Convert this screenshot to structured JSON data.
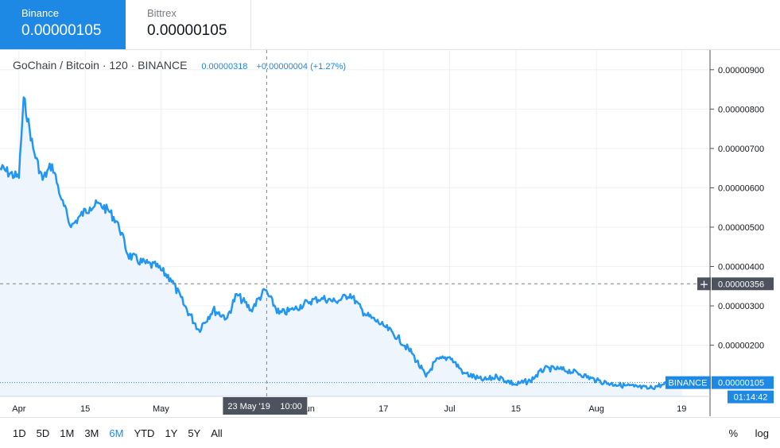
{
  "tabs": [
    {
      "name": "Binance",
      "price": "0.00000105",
      "active": true
    },
    {
      "name": "Bittrex",
      "price": "0.00000105",
      "active": false
    }
  ],
  "legend": {
    "title": "GoChain / Bitcoin · 120 · BINANCE",
    "last": "0.00000318",
    "change": "+0.00000004 (+1.27%)"
  },
  "crosshair": {
    "price_label": "0.00000356",
    "date_label": "23 May '19",
    "time_label": "10:00"
  },
  "last_price": {
    "exchange_label": "BINANCE",
    "value_label": "0.00000105",
    "countdown": "01:14:42"
  },
  "toolbar": {
    "ranges": [
      "1D",
      "5D",
      "1M",
      "3M",
      "6M",
      "YTD",
      "1Y",
      "5Y",
      "All"
    ],
    "selected": "6M",
    "percent": "%",
    "log": "log"
  },
  "colors": {
    "accent": "#1e88e5",
    "line": "#2196f3",
    "area": "#eef5fd",
    "grid": "#eef0f3",
    "crosshair_label_bg": "#4c525e"
  },
  "chart_data": {
    "type": "area",
    "title": "GoChain / Bitcoin · 120 · BINANCE",
    "xlabel": "",
    "ylabel": "",
    "x_ticks": [
      "Apr",
      "15",
      "May",
      "Jun",
      "17",
      "Jul",
      "15",
      "Aug",
      "19"
    ],
    "y_ticks": [
      "0.00000200",
      "0.00000300",
      "0.00000400",
      "0.00000500",
      "0.00000600",
      "0.00000700",
      "0.00000800",
      "0.00000900"
    ],
    "ylim": [
      7e-07,
      9.5e-06
    ],
    "x": [
      "2019-03-28",
      "2019-04-01",
      "2019-04-02",
      "2019-04-04",
      "2019-04-06",
      "2019-04-08",
      "2019-04-10",
      "2019-04-12",
      "2019-04-14",
      "2019-04-16",
      "2019-04-18",
      "2019-04-20",
      "2019-04-22",
      "2019-04-24",
      "2019-04-27",
      "2019-04-30",
      "2019-05-03",
      "2019-05-06",
      "2019-05-09",
      "2019-05-12",
      "2019-05-15",
      "2019-05-17",
      "2019-05-20",
      "2019-05-23",
      "2019-05-26",
      "2019-05-29",
      "2019-06-01",
      "2019-06-04",
      "2019-06-07",
      "2019-06-10",
      "2019-06-13",
      "2019-06-17",
      "2019-06-20",
      "2019-06-23",
      "2019-06-26",
      "2019-06-28",
      "2019-07-01",
      "2019-07-04",
      "2019-07-08",
      "2019-07-11",
      "2019-07-15",
      "2019-07-18",
      "2019-07-21",
      "2019-07-24",
      "2019-07-28",
      "2019-08-01",
      "2019-08-05",
      "2019-08-09",
      "2019-08-12",
      "2019-08-15",
      "2019-08-19"
    ],
    "series": [
      {
        "values": [
          6.5e-06,
          6.25e-06,
          8.3e-06,
          7e-06,
          6.2e-06,
          6.6e-06,
          5.7e-06,
          5e-06,
          5.3e-06,
          5.5e-06,
          5.6e-06,
          5.4e-06,
          5.1e-06,
          4.3e-06,
          4.1e-06,
          4e-06,
          3.7e-06,
          3e-06,
          2.4e-06,
          2.9e-06,
          2.7e-06,
          3.3e-06,
          2.9e-06,
          3.4e-06,
          2.8e-06,
          2.9e-06,
          3.1e-06,
          3.2e-06,
          3.1e-06,
          3.3e-06,
          2.8e-06,
          2.5e-06,
          2.2e-06,
          1.8e-06,
          1.2e-06,
          1.6e-06,
          1.7e-06,
          1.3e-06,
          1.1e-06,
          1.2e-06,
          1e-06,
          1.1e-06,
          1.4e-06,
          1.4e-06,
          1.3e-06,
          1.1e-06,
          1e-06,
          9.5e-07,
          9e-07,
          1e-06,
          1.05e-06
        ]
      }
    ],
    "grid": true,
    "price_scale_position": "right"
  }
}
